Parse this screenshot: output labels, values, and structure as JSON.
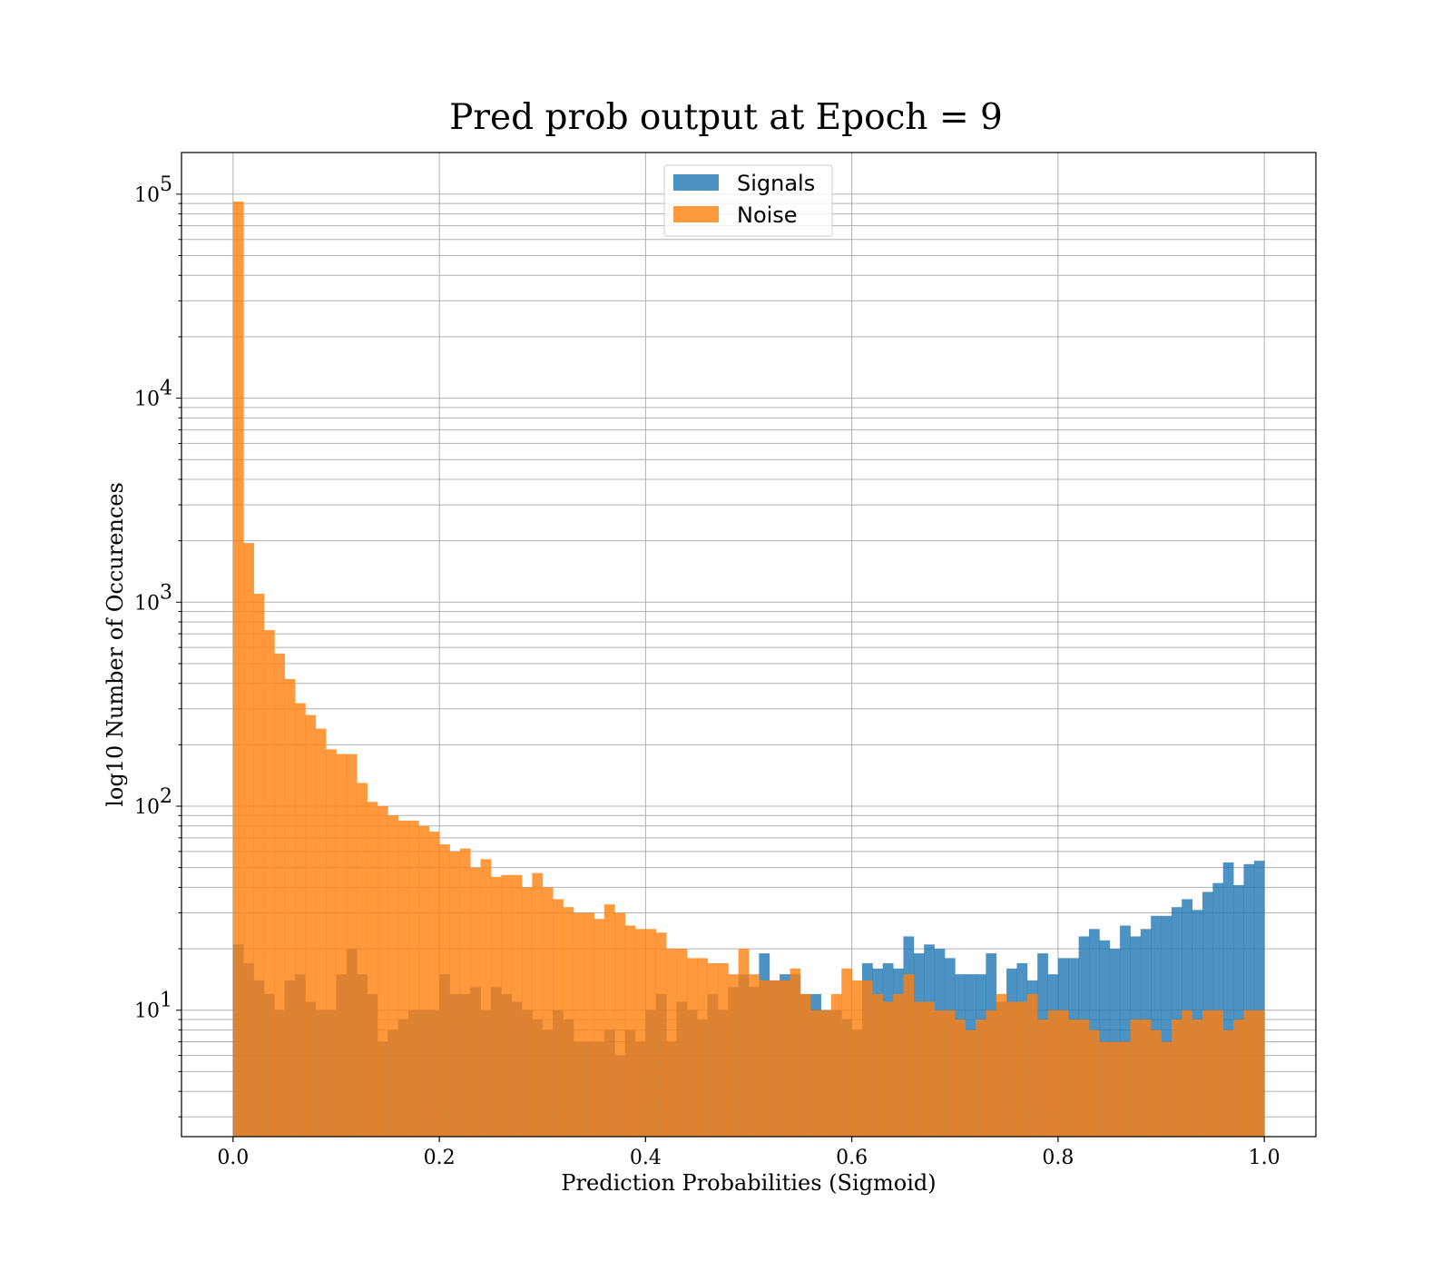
{
  "chart_data": {
    "type": "bar",
    "subtype": "histogram",
    "title": "Pred prob output at Epoch = 9",
    "xlabel": "Prediction Probabilities (Sigmoid)",
    "ylabel": "log10 Number of Occurences",
    "xlim": [
      -0.05,
      1.05
    ],
    "ylim": [
      2.4,
      160000
    ],
    "yscale": "log",
    "grid": true,
    "bins": 100,
    "bin_range": [
      0,
      1
    ],
    "xticks": [
      0.0,
      0.2,
      0.4,
      0.6,
      0.8,
      1.0
    ],
    "xtick_labels": [
      "0.0",
      "0.2",
      "0.4",
      "0.6",
      "0.8",
      "1.0"
    ],
    "yticks": [
      {
        "mant": "10",
        "exp": "1",
        "value": 10
      },
      {
        "mant": "10",
        "exp": "2",
        "value": 100
      },
      {
        "mant": "10",
        "exp": "3",
        "value": 1000
      },
      {
        "mant": "10",
        "exp": "4",
        "value": 10000
      },
      {
        "mant": "10",
        "exp": "5",
        "value": 100000
      }
    ],
    "legend_position": "upper center",
    "series": [
      {
        "name": "Signals",
        "color": "#1f77b4",
        "values": [
          21,
          17,
          14,
          12,
          10,
          14,
          15,
          11,
          10,
          10,
          15,
          20,
          15,
          12,
          7,
          8,
          9,
          10,
          10,
          10,
          15,
          12,
          12,
          13,
          10,
          13,
          12,
          11,
          10,
          9,
          8,
          10,
          9,
          7,
          7,
          7,
          8,
          6,
          8,
          7,
          10,
          12,
          7,
          11,
          10,
          9,
          12,
          10,
          13,
          15,
          13,
          19,
          14,
          15,
          15,
          12,
          12,
          10,
          10,
          9,
          8,
          17,
          16,
          17,
          16,
          23,
          19,
          21,
          20,
          18,
          15,
          15,
          15,
          19,
          11,
          16,
          17,
          14,
          19,
          15,
          18,
          18,
          23,
          25,
          22,
          20,
          26,
          23,
          25,
          29,
          29,
          32,
          35,
          31,
          38,
          42,
          53,
          41,
          52,
          54
        ]
      },
      {
        "name": "Noise",
        "color": "#ff7f0e",
        "values": [
          92000,
          1950,
          1100,
          730,
          560,
          420,
          320,
          280,
          240,
          190,
          180,
          180,
          130,
          105,
          100,
          90,
          85,
          85,
          80,
          75,
          65,
          60,
          62,
          50,
          55,
          45,
          46,
          46,
          40,
          47,
          40,
          35,
          32,
          30,
          30,
          28,
          33,
          30,
          26,
          25,
          25,
          24,
          20,
          20,
          18,
          18,
          17,
          17,
          15,
          20,
          15,
          14,
          14,
          14,
          16,
          12,
          10,
          10,
          12,
          16,
          14,
          14,
          12,
          11,
          12,
          15,
          11,
          11,
          10,
          10,
          9,
          8,
          9,
          10,
          12,
          11,
          11,
          12,
          9,
          10,
          10,
          9,
          9,
          8,
          7,
          7,
          7,
          9,
          9,
          8,
          7,
          9,
          10,
          9,
          10,
          10,
          8,
          9,
          10,
          10
        ]
      }
    ]
  }
}
